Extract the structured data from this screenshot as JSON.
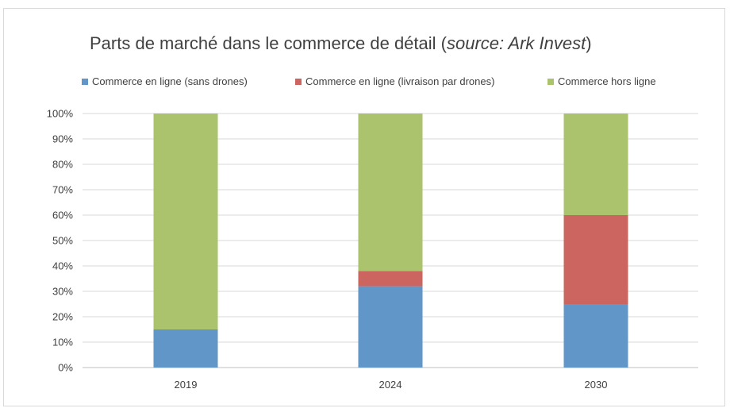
{
  "chart_data": {
    "type": "bar",
    "stacked": true,
    "title": "Parts de marché dans le commerce de détail (",
    "title_source": "source: Ark Invest",
    "title_close": ")",
    "categories": [
      "2019",
      "2024",
      "2030"
    ],
    "series": [
      {
        "name": "Commerce en ligne (sans drones)",
        "color": "#6196c8",
        "values": [
          15,
          32,
          25
        ]
      },
      {
        "name": "Commerce en ligne (livraison par drones)",
        "color": "#cc6460",
        "values": [
          0,
          6,
          35
        ]
      },
      {
        "name": "Commerce hors ligne",
        "color": "#aac36c",
        "values": [
          85,
          62,
          40
        ]
      }
    ],
    "yticks": [
      "0%",
      "10%",
      "20%",
      "30%",
      "40%",
      "50%",
      "60%",
      "70%",
      "80%",
      "90%",
      "100%"
    ],
    "ylim": [
      0,
      100
    ],
    "grid": true,
    "legend_position": "top"
  }
}
